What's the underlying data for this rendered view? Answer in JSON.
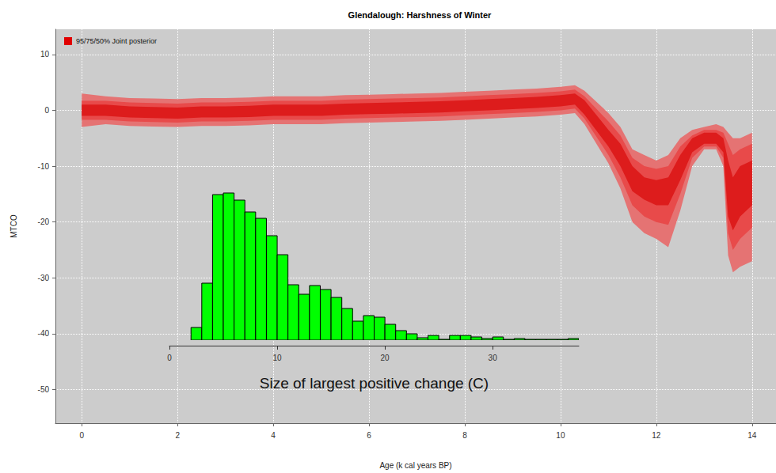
{
  "chart_data": [
    {
      "type": "band",
      "title": "Glendalough: Harshness of Winter",
      "x_label": "Age (k cal years BP)",
      "y_label": "MTCO",
      "x": [
        0,
        0.5,
        1,
        1.5,
        2,
        2.5,
        3,
        3.5,
        4,
        4.5,
        5,
        5.5,
        6,
        6.5,
        7,
        7.5,
        8,
        8.5,
        9,
        9.5,
        10,
        10.3,
        10.5,
        11,
        11.25,
        11.5,
        11.75,
        12,
        12.25,
        12.5,
        12.75,
        13,
        13.25,
        13.4,
        13.5,
        13.6,
        13.75,
        14
      ],
      "series": [
        {
          "name": "95/75/50% Joint posterior",
          "color": "#e00000",
          "bands": [
            {
              "color": "#e57373",
              "lower": [
                -3,
                -2.5,
                -2.8,
                -2.9,
                -3,
                -2.8,
                -2.8,
                -2.7,
                -2.5,
                -2.5,
                -2.5,
                -2.3,
                -2.2,
                -2.1,
                -2,
                -1.9,
                -1.7,
                -1.5,
                -1.3,
                -1.1,
                -0.8,
                -0.5,
                -2.5,
                -9.5,
                -14,
                -20,
                -22,
                -23,
                -24.5,
                -18,
                -10,
                -7,
                -7,
                -10,
                -26,
                -29,
                -28,
                -27
              ],
              "upper": [
                3,
                2.5,
                2.2,
                2.1,
                2,
                2.2,
                2.2,
                2.3,
                2.5,
                2.5,
                2.5,
                2.7,
                2.8,
                2.9,
                3,
                3.1,
                3.3,
                3.5,
                3.7,
                3.9,
                4.2,
                4.5,
                3.5,
                -0.5,
                -3,
                -7,
                -8,
                -9,
                -8,
                -5,
                -3.5,
                -3,
                -2.5,
                -3,
                -4,
                -5,
                -5,
                -4
              ]
            },
            {
              "color": "#e84a4a",
              "lower": [
                -1.7,
                -1.7,
                -2,
                -2.1,
                -2.2,
                -2,
                -2,
                -1.9,
                -1.7,
                -1.7,
                -1.7,
                -1.5,
                -1.4,
                -1.3,
                -1.2,
                -1.1,
                -0.9,
                -0.7,
                -0.5,
                -0.3,
                0,
                0.3,
                -1.5,
                -8,
                -12,
                -17,
                -19,
                -20,
                -20.5,
                -15,
                -8.5,
                -6.5,
                -6.5,
                -8.5,
                -22,
                -25,
                -23,
                -21
              ],
              "upper": [
                1.7,
                1.7,
                1.4,
                1.3,
                1.2,
                1.4,
                1.4,
                1.5,
                1.7,
                1.7,
                1.7,
                1.9,
                2,
                2.1,
                2.2,
                2.3,
                2.5,
                2.7,
                2.9,
                3.1,
                3.4,
                3.7,
                2.5,
                -2,
                -4.5,
                -8.5,
                -10,
                -10.5,
                -10,
                -6.5,
                -4.5,
                -3.5,
                -3.5,
                -4,
                -6,
                -8,
                -7,
                -6
              ]
            },
            {
              "color": "#dd1c1c",
              "lower": [
                -1,
                -1,
                -1.3,
                -1.4,
                -1.5,
                -1.3,
                -1.3,
                -1.2,
                -1,
                -1,
                -1,
                -0.8,
                -0.7,
                -0.6,
                -0.5,
                -0.4,
                -0.2,
                0,
                0.2,
                0.4,
                0.7,
                1,
                -0.8,
                -6.5,
                -10,
                -14.5,
                -16,
                -17,
                -17,
                -12.5,
                -7.5,
                -6,
                -6,
                -7.5,
                -19,
                -21.5,
                -19,
                -17
              ],
              "upper": [
                1,
                1,
                0.7,
                0.6,
                0.5,
                0.7,
                0.7,
                0.8,
                1,
                1,
                1,
                1.2,
                1.3,
                1.4,
                1.5,
                1.6,
                1.8,
                2,
                2.2,
                2.4,
                2.7,
                3,
                1.8,
                -3.5,
                -6,
                -10,
                -12,
                -12.5,
                -12,
                -8,
                -5,
                -4,
                -4,
                -5,
                -9,
                -12,
                -10,
                -9
              ]
            }
          ]
        }
      ],
      "xlim": [
        -0.55,
        14.5
      ],
      "xticks": [
        0,
        2,
        4,
        6,
        8,
        10,
        12,
        14
      ],
      "ylim": [
        -56,
        14.5
      ],
      "yticks": [
        -50,
        -40,
        -30,
        -20,
        -10,
        0,
        10
      ],
      "grid": true,
      "legend": "upper left"
    },
    {
      "type": "histogram",
      "x_label": "Size of largest positive change (C)",
      "bins": [
        2,
        3,
        4,
        5,
        6,
        7,
        8,
        9,
        10,
        11,
        12,
        13,
        14,
        15,
        16,
        17,
        18,
        19,
        20,
        21,
        22,
        23,
        24,
        25,
        26,
        27,
        28,
        29,
        30,
        31,
        32,
        33,
        34,
        35,
        36,
        37,
        38
      ],
      "counts": [
        16,
        72,
        184,
        186,
        177,
        162,
        154,
        132,
        108,
        70,
        58,
        69,
        64,
        54,
        40,
        24,
        31,
        29,
        20,
        12,
        8,
        3,
        6,
        1,
        6,
        6,
        4,
        2,
        4,
        1,
        2,
        1,
        1,
        1,
        1,
        2
      ],
      "color": "#00ff00",
      "xlim": [
        0,
        38
      ],
      "xticks": [
        0,
        10,
        20,
        30
      ],
      "ylim": [
        0,
        190
      ],
      "tick_labels": "x",
      "grid": false
    }
  ]
}
